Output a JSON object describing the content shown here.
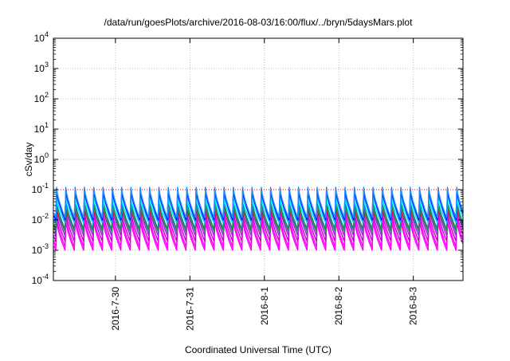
{
  "chart_data": {
    "type": "line",
    "title": "/data/run/goesPlots/archive/2016-08-03/16:00/flux/../bryn/5daysMars.plot",
    "xlabel": "Coordinated Universal Time (UTC)",
    "ylabel": "cSv/day",
    "x_range": [
      "2016-07-29T04:00",
      "2016-08-03T16:00"
    ],
    "y_range": [
      0.0001,
      10000
    ],
    "y_scale": "log",
    "grid": true,
    "legend": "none",
    "x_ticks": [
      {
        "x": "2016-07-30",
        "label": "2016-7-30"
      },
      {
        "x": "2016-07-31",
        "label": "2016-7-31"
      },
      {
        "x": "2016-08-01",
        "label": "2016-8-1"
      },
      {
        "x": "2016-08-02",
        "label": "2016-8-2"
      },
      {
        "x": "2016-08-03",
        "label": "2016-8-3"
      }
    ],
    "y_ticks": [
      {
        "value": 0.0001,
        "base": "10",
        "exp": "-4"
      },
      {
        "value": 0.001,
        "base": "10",
        "exp": "-3"
      },
      {
        "value": 0.01,
        "base": "10",
        "exp": "-2"
      },
      {
        "value": 0.1,
        "base": "10",
        "exp": "-1"
      },
      {
        "value": 1,
        "base": "10",
        "exp": "0"
      },
      {
        "value": 10,
        "base": "10",
        "exp": "1"
      },
      {
        "value": 100,
        "base": "10",
        "exp": "2"
      },
      {
        "value": 1000,
        "base": "10",
        "exp": "3"
      },
      {
        "value": 10000,
        "base": "10",
        "exp": "4"
      }
    ],
    "reference_line": {
      "value": 0.1,
      "color": "#ff0000",
      "style": "dotted"
    },
    "pattern": {
      "cycle_hours": 3,
      "first_peak": "2016-07-29T05:00"
    },
    "series": [
      {
        "color": "#ff00ff",
        "peak": 0.01,
        "trough": 0.001
      },
      {
        "color": "#ff00ff",
        "peak": 0.014,
        "trough": 0.0013
      },
      {
        "color": "#cc00cc",
        "peak": 0.02,
        "trough": 0.002
      },
      {
        "color": "#a020f0",
        "peak": 0.03,
        "trough": 0.003
      },
      {
        "color": "#ff0000",
        "peak": 0.025,
        "trough": 0.005
      },
      {
        "color": "#008b8b",
        "peak": 0.045,
        "trough": 0.005
      },
      {
        "color": "#2e8b57",
        "peak": 0.035,
        "trough": 0.004
      },
      {
        "color": "#00bfff",
        "peak": 0.06,
        "trough": 0.008
      },
      {
        "color": "#00ffff",
        "peak": 0.05,
        "trough": 0.01
      },
      {
        "color": "#0000ff",
        "peak": 0.1,
        "trough": 0.01
      },
      {
        "color": "#1e90ff",
        "peak": 0.12,
        "trough": 0.012
      }
    ]
  }
}
